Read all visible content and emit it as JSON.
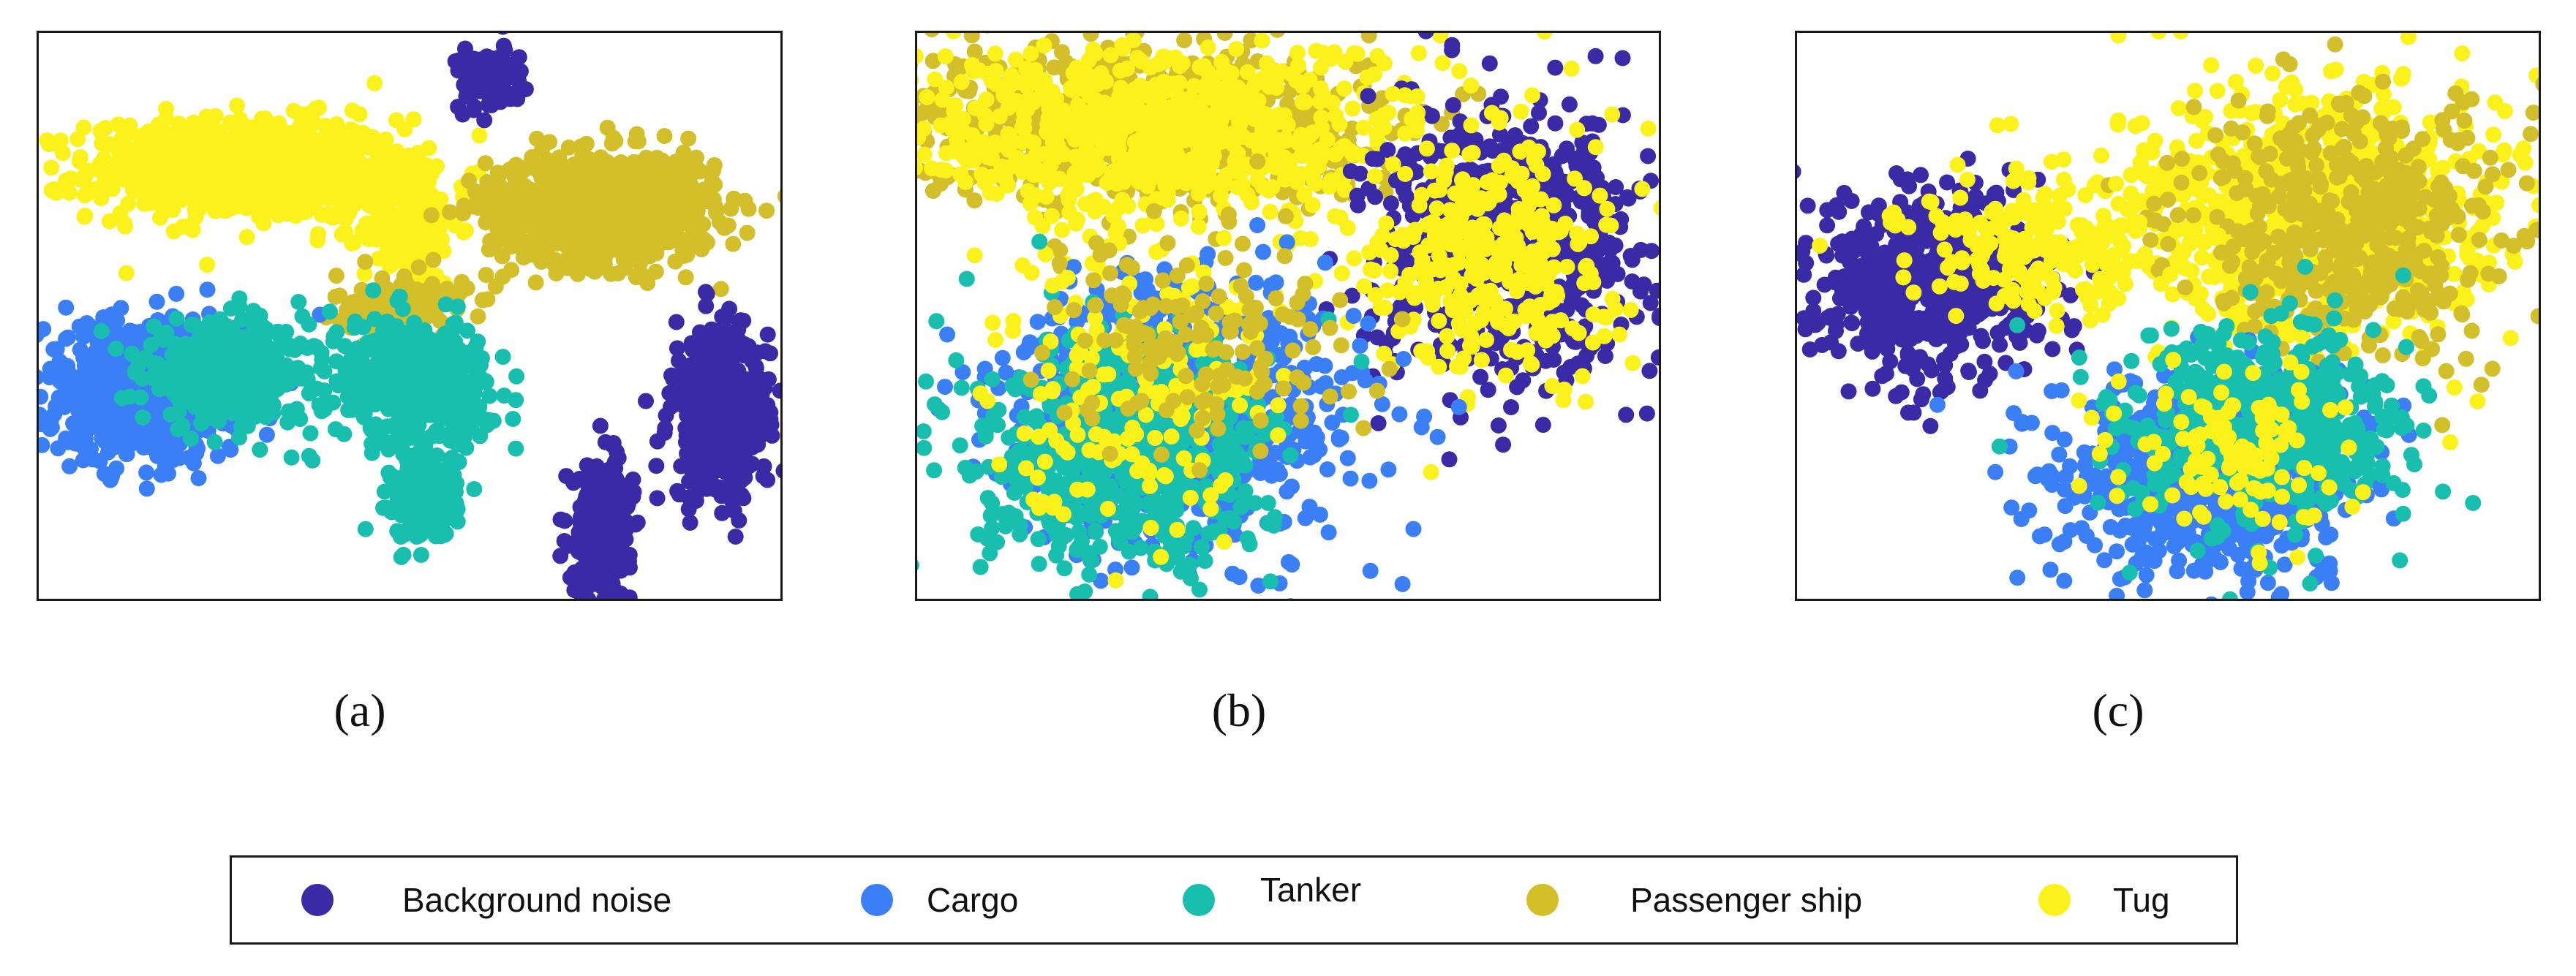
{
  "chart_data": [
    {
      "type": "scatter",
      "panel": "a",
      "label": "a",
      "xlim": [
        0,
        100
      ],
      "ylim": [
        0,
        100
      ],
      "axes_ticks": false,
      "clusters": [
        {
          "series": "Tug",
          "cx": 28,
          "cy": 76,
          "rx": 19,
          "ry": 8,
          "n": 900
        },
        {
          "series": "Tug",
          "cx": 50,
          "cy": 66,
          "rx": 6,
          "ry": 10,
          "n": 160
        },
        {
          "series": "Passenger ship",
          "cx": 76,
          "cy": 69,
          "rx": 14,
          "ry": 9,
          "n": 800
        },
        {
          "series": "Passenger ship",
          "cx": 49,
          "cy": 52,
          "rx": 8,
          "ry": 5,
          "n": 120
        },
        {
          "series": "Cargo",
          "cx": 14,
          "cy": 37,
          "rx": 12,
          "ry": 11,
          "n": 700
        },
        {
          "series": "Tanker",
          "cx": 25,
          "cy": 40,
          "rx": 10,
          "ry": 8,
          "n": 400
        },
        {
          "series": "Tanker",
          "cx": 50,
          "cy": 38,
          "rx": 10,
          "ry": 10,
          "n": 450
        },
        {
          "series": "Tanker",
          "cx": 52,
          "cy": 18,
          "rx": 4,
          "ry": 7,
          "n": 220
        },
        {
          "series": "Background noise",
          "cx": 92,
          "cy": 33,
          "rx": 6,
          "ry": 14,
          "n": 450
        },
        {
          "series": "Background noise",
          "cx": 76,
          "cy": 12,
          "rx": 3.5,
          "ry": 11,
          "n": 350
        },
        {
          "series": "Background noise",
          "cx": 61,
          "cy": 92,
          "rx": 4,
          "ry": 5,
          "n": 120
        }
      ]
    },
    {
      "type": "scatter",
      "panel": "b",
      "label": "b",
      "xlim": [
        0,
        100
      ],
      "ylim": [
        0,
        100
      ],
      "axes_ticks": false,
      "clusters": [
        {
          "series": "Passenger ship",
          "cx": 30,
          "cy": 84,
          "rx": 28,
          "ry": 13,
          "n": 800
        },
        {
          "series": "Tug",
          "cx": 32,
          "cy": 82,
          "rx": 30,
          "ry": 15,
          "n": 700
        },
        {
          "series": "Background noise",
          "cx": 80,
          "cy": 62,
          "rx": 17,
          "ry": 22,
          "n": 650
        },
        {
          "series": "Tug",
          "cx": 77,
          "cy": 62,
          "rx": 15,
          "ry": 22,
          "n": 350
        },
        {
          "series": "Cargo",
          "cx": 36,
          "cy": 33,
          "rx": 22,
          "ry": 22,
          "n": 750
        },
        {
          "series": "Tanker",
          "cx": 28,
          "cy": 25,
          "rx": 18,
          "ry": 18,
          "n": 650
        },
        {
          "series": "Tug",
          "cx": 30,
          "cy": 40,
          "rx": 18,
          "ry": 22,
          "n": 180
        },
        {
          "series": "Passenger ship",
          "cx": 38,
          "cy": 45,
          "rx": 18,
          "ry": 18,
          "n": 150
        }
      ]
    },
    {
      "type": "scatter",
      "panel": "c",
      "label": "c",
      "xlim": [
        0,
        100
      ],
      "ylim": [
        0,
        100
      ],
      "axes_ticks": false,
      "clusters": [
        {
          "series": "Background noise",
          "cx": 18,
          "cy": 56,
          "rx": 14,
          "ry": 15,
          "n": 600
        },
        {
          "series": "Tug",
          "cx": 70,
          "cy": 68,
          "rx": 25,
          "ry": 20,
          "n": 900
        },
        {
          "series": "Passenger ship",
          "cx": 74,
          "cy": 65,
          "rx": 20,
          "ry": 20,
          "n": 500
        },
        {
          "series": "Tug",
          "cx": 32,
          "cy": 62,
          "rx": 15,
          "ry": 10,
          "n": 200
        },
        {
          "series": "Cargo",
          "cx": 55,
          "cy": 22,
          "rx": 18,
          "ry": 16,
          "n": 700
        },
        {
          "series": "Tanker",
          "cx": 62,
          "cy": 30,
          "rx": 17,
          "ry": 16,
          "n": 600
        },
        {
          "series": "Tug",
          "cx": 58,
          "cy": 25,
          "rx": 15,
          "ry": 15,
          "n": 120
        }
      ]
    }
  ],
  "legend": {
    "items": [
      {
        "label": "Background noise",
        "color": "#3b2aa5"
      },
      {
        "label": "Cargo",
        "color": "#3a7ff5"
      },
      {
        "label": "Tanker",
        "color": "#18bfaf"
      },
      {
        "label": "Passenger ship",
        "color": "#d2bf2a"
      },
      {
        "label": "Tug",
        "color": "#fcf21b"
      }
    ]
  },
  "series_colors": {
    "Background noise": "#3b2aa5",
    "Cargo": "#3a7ff5",
    "Tanker": "#18bfaf",
    "Passenger ship": "#d2bf2a",
    "Tug": "#fcf21b"
  },
  "subfigure_labels": {
    "a": "(a)",
    "b": "(b)",
    "c": "(c)"
  }
}
